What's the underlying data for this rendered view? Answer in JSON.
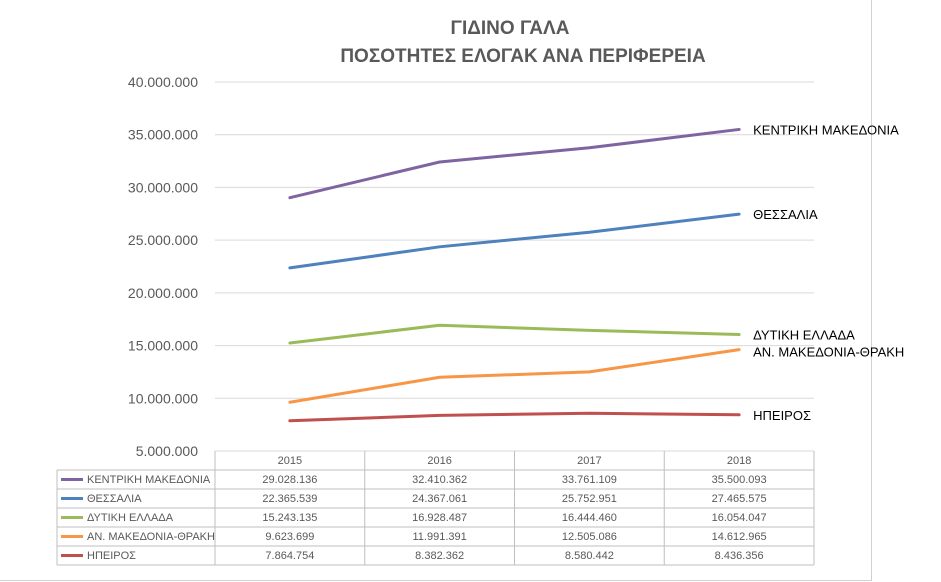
{
  "chart_data": {
    "type": "line",
    "title_line1": "ΓΙΔΙΝΟ ΓΑΛΑ",
    "title_line2": "ΠΟΣΟΤΗΤΕΣ ΕΛΟΓΑΚ ΑΝΑ ΠΕΡΙΦΕΡΕΙΑ",
    "categories": [
      "2015",
      "2016",
      "2017",
      "2018"
    ],
    "ylim": [
      5000000,
      40000000
    ],
    "yticks": [
      5000000,
      10000000,
      15000000,
      20000000,
      25000000,
      30000000,
      35000000,
      40000000
    ],
    "ytick_labels": [
      "5.000.000",
      "10.000.000",
      "15.000.000",
      "20.000.000",
      "25.000.000",
      "30.000.000",
      "35.000.000",
      "40.000.000"
    ],
    "grid": true,
    "legend": "data-table",
    "series": [
      {
        "name": "ΚΕΝΤΡΙΚΗ ΜΑΚΕΔΟΝΙΑ",
        "end_label": "ΚΕΝΤΡΙΚΗ ΜΑΚΕΔΟΝΙΑ",
        "color": "#8064a2",
        "values": [
          29028136,
          32410362,
          33761109,
          35500093
        ],
        "labels": [
          "29.028.136",
          "32.410.362",
          "33.761.109",
          "35.500.093"
        ]
      },
      {
        "name": "ΘΕΣΣΑΛΙΑ",
        "end_label": "ΘΕΣΣΑΛΙΑ",
        "color": "#4f81bd",
        "values": [
          22365539,
          24367061,
          25752951,
          27465575
        ],
        "labels": [
          "22.365.539",
          "24.367.061",
          "25.752.951",
          "27.465.575"
        ]
      },
      {
        "name": "ΔΥΤΙΚΗ ΕΛΛΑΔΑ",
        "end_label": "ΔΥΤΙΚΗ ΕΛΛΑΔΑ",
        "color": "#9bbb59",
        "values": [
          15243135,
          16928487,
          16444460,
          16054047
        ],
        "labels": [
          "15.243.135",
          "16.928.487",
          "16.444.460",
          "16.054.047"
        ]
      },
      {
        "name": "ΑΝ. ΜΑΚΕΔΟΝΙΑ-ΘΡΑΚΗ",
        "end_label": "ΑΝ. ΜΑΚΕΔΟΝΙΑ-ΘΡΑΚΗ",
        "color": "#f79646",
        "values": [
          9623699,
          11991391,
          12505086,
          14612965
        ],
        "labels": [
          "9.623.699",
          "11.991.391",
          "12.505.086",
          "14.612.965"
        ]
      },
      {
        "name": "ΗΠΕΙΡΟΣ",
        "end_label": "ΗΠΕΙΡΟΣ",
        "color": "#c0504d",
        "values": [
          7864754,
          8382362,
          8580442,
          8436356
        ],
        "labels": [
          "7.864.754",
          "8.382.362",
          "8.580.442",
          "8.436.356"
        ]
      }
    ]
  }
}
